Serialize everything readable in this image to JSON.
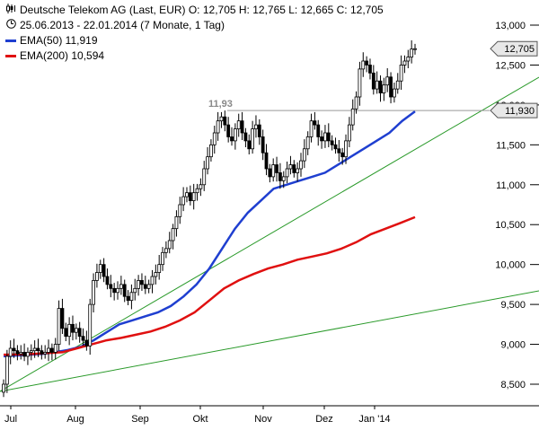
{
  "header": {
    "title_line": "Deutsche Telekom AG (Last, EUR)  O: 12,705  H: 12,765  L: 12,665  C: 12,705",
    "period_line": "25.06.2013 - 22.01.2014 (7 Monate, 1 Tag)",
    "legend": [
      {
        "label": "EMA(50)  11,919",
        "color": "#1f3fd0"
      },
      {
        "label": "EMA(200)  10,594",
        "color": "#e01010"
      }
    ],
    "chart_icon": "candlestick-chart-icon",
    "calendar_icon": "clock-icon"
  },
  "chart_data": {
    "type": "candlestick",
    "instrument": "Deutsche Telekom AG",
    "currency": "EUR",
    "ohlc_last": {
      "open": 12.705,
      "high": 12.765,
      "low": 12.665,
      "close": 12.705
    },
    "x_tick_labels": [
      "Jul",
      "Aug",
      "Sep",
      "Okt",
      "Nov",
      "Dez",
      "Jan '14"
    ],
    "y_tick_labels": [
      "8,500",
      "9,000",
      "9,500",
      "10,000",
      "10,500",
      "11,000",
      "11,500",
      "12,000",
      "12,500",
      "13,000"
    ],
    "y_ticks": [
      8.5,
      9.0,
      9.5,
      10.0,
      10.5,
      11.0,
      11.5,
      12.0,
      12.5,
      13.0
    ],
    "ylim": [
      8.25,
      13.2
    ],
    "grid": false,
    "last_price_label": "12,705",
    "last_price": 12.705,
    "resistance": {
      "value": 11.93,
      "label_left": "11,93",
      "label_right": "11,930",
      "color": "#999999"
    },
    "closes": [
      8.5,
      8.85,
      8.95,
      8.92,
      8.88,
      8.9,
      8.85,
      8.9,
      8.92,
      8.95,
      8.92,
      8.88,
      8.9,
      8.95,
      8.9,
      9.0,
      9.45,
      9.2,
      9.1,
      9.25,
      9.15,
      9.2,
      9.1,
      9.05,
      8.98,
      9.5,
      9.8,
      9.9,
      10.0,
      9.85,
      9.75,
      9.7,
      9.65,
      9.7,
      9.75,
      9.6,
      9.55,
      9.65,
      9.7,
      9.8,
      9.75,
      9.7,
      9.75,
      9.85,
      9.9,
      10.0,
      10.15,
      10.2,
      10.3,
      10.45,
      10.6,
      10.75,
      10.85,
      10.9,
      10.8,
      10.9,
      10.95,
      11.0,
      11.2,
      11.35,
      11.5,
      11.65,
      11.8,
      11.85,
      11.75,
      11.6,
      11.55,
      11.7,
      11.8,
      11.65,
      11.55,
      11.45,
      11.7,
      11.75,
      11.6,
      11.4,
      11.2,
      11.1,
      11.25,
      11.15,
      11.05,
      11.1,
      11.2,
      11.25,
      11.15,
      11.2,
      11.3,
      11.45,
      11.6,
      11.8,
      11.75,
      11.6,
      11.55,
      11.65,
      11.55,
      11.5,
      11.45,
      11.4,
      11.35,
      11.55,
      11.75,
      11.95,
      12.1,
      12.45,
      12.55,
      12.5,
      12.4,
      12.2,
      12.3,
      12.15,
      12.25,
      12.35,
      12.1,
      12.2,
      12.3,
      12.5,
      12.55,
      12.6,
      12.7,
      12.705
    ],
    "series": [
      {
        "name": "EMA(50)",
        "last": 11.919,
        "color": "#1f3fd0",
        "values": [
          8.85,
          8.86,
          8.87,
          8.88,
          8.9,
          8.93,
          8.97,
          9.05,
          9.15,
          9.25,
          9.3,
          9.35,
          9.4,
          9.48,
          9.6,
          9.75,
          9.95,
          10.2,
          10.45,
          10.65,
          10.8,
          10.95,
          11.0,
          11.05,
          11.1,
          11.15,
          11.25,
          11.35,
          11.45,
          11.55,
          11.65,
          11.8,
          11.919
        ]
      },
      {
        "name": "EMA(200)",
        "last": 10.594,
        "color": "#e01010",
        "values": [
          8.87,
          8.875,
          8.88,
          8.89,
          8.9,
          8.95,
          9.0,
          9.05,
          9.08,
          9.12,
          9.16,
          9.22,
          9.3,
          9.4,
          9.55,
          9.7,
          9.8,
          9.88,
          9.95,
          10.0,
          10.06,
          10.1,
          10.14,
          10.2,
          10.28,
          10.38,
          10.45,
          10.52,
          10.594
        ]
      }
    ],
    "trendlines": [
      {
        "from": [
          0.0,
          8.4
        ],
        "to": [
          1.0,
          11.85
        ],
        "color": "#2a9a2a"
      },
      {
        "from": [
          0.0,
          8.4
        ],
        "to": [
          1.0,
          9.55
        ],
        "color": "#2a9a2a"
      }
    ]
  }
}
